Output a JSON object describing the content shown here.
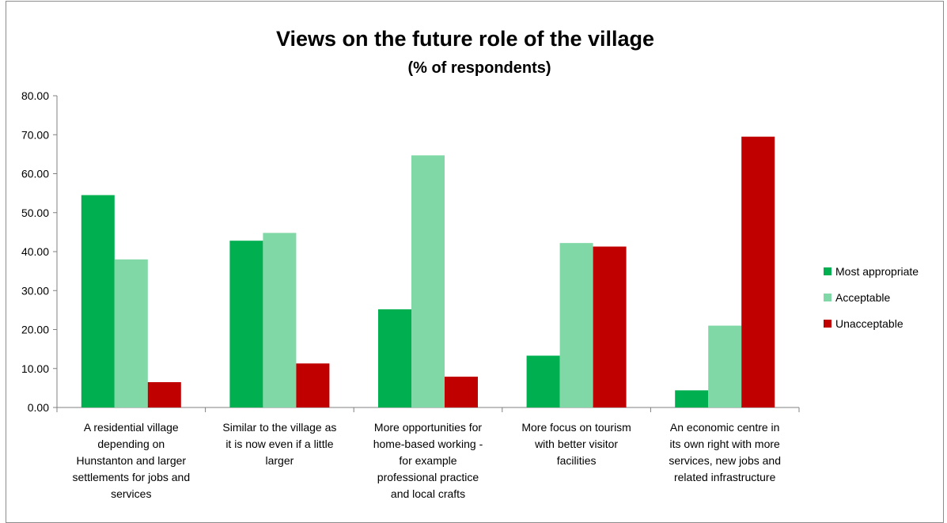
{
  "chart_data": {
    "type": "bar",
    "title": "Views on the future role of the village",
    "subtitle": "(% of respondents)",
    "categories": [
      [
        "A residential village",
        "depending on",
        "Hunstanton and larger",
        "settlements for jobs and",
        "services"
      ],
      [
        "Similar to the village as",
        "it is now even if a little",
        "larger"
      ],
      [
        "More opportunities for",
        "home-based working -",
        "for example",
        "professional practice",
        "and local crafts"
      ],
      [
        "More focus on tourism",
        "with better visitor",
        "facilities"
      ],
      [
        "An economic centre in",
        "its own right with more",
        "services, new jobs and",
        "related infrastructure"
      ]
    ],
    "series": [
      {
        "name": "Most appropriate",
        "color": "#00b050",
        "values": [
          54.5,
          42.8,
          25.2,
          13.3,
          4.4
        ]
      },
      {
        "name": "Acceptable",
        "color": "#80d8a6",
        "values": [
          38.0,
          44.8,
          64.7,
          42.2,
          21.0
        ]
      },
      {
        "name": "Unacceptable",
        "color": "#c00000",
        "values": [
          6.5,
          11.3,
          7.9,
          41.3,
          69.5
        ]
      }
    ],
    "ylim": [
      0,
      80
    ],
    "yticks": [
      "0.00",
      "10.00",
      "20.00",
      "30.00",
      "40.00",
      "50.00",
      "60.00",
      "70.00",
      "80.00"
    ],
    "grid": false,
    "legend": "right"
  }
}
